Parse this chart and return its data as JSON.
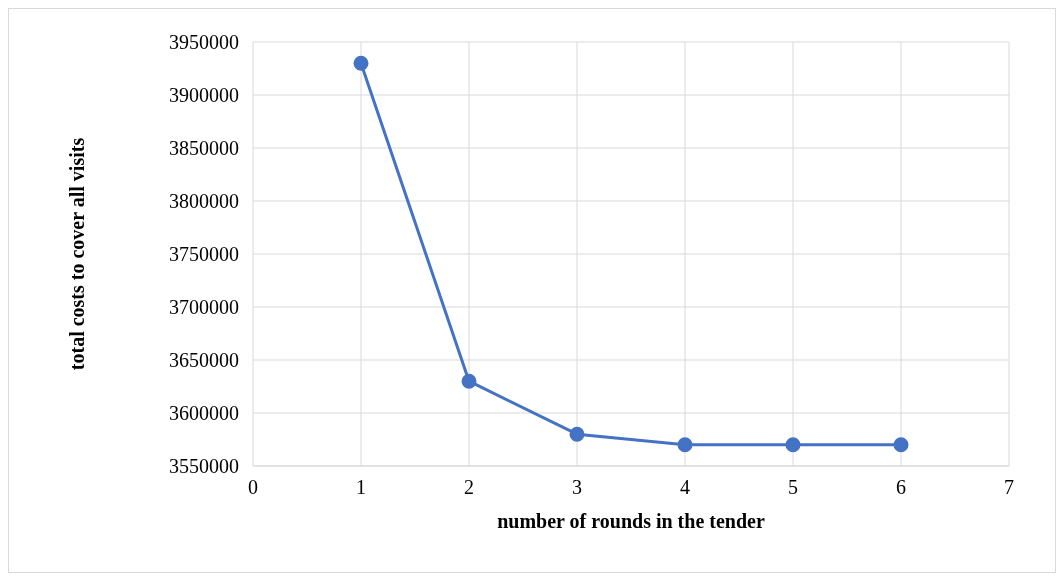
{
  "chart_data": {
    "type": "line",
    "xlabel": "number of rounds in the tender",
    "ylabel": "total costs to cover all visits",
    "x": [
      1,
      2,
      3,
      4,
      5,
      6
    ],
    "series": [
      {
        "color": "#4472c4",
        "values": [
          3930000,
          3630000,
          3580000,
          3570000,
          3570000,
          3570000
        ]
      }
    ],
    "xlim": [
      0,
      7
    ],
    "xticks": [
      0,
      1,
      2,
      3,
      4,
      5,
      6,
      7
    ],
    "ylim": [
      3550000,
      3950000
    ],
    "yticks": [
      3550000,
      3600000,
      3650000,
      3700000,
      3750000,
      3800000,
      3850000,
      3900000,
      3950000
    ],
    "grid": true,
    "marker": "circle",
    "line_style": "solid"
  }
}
